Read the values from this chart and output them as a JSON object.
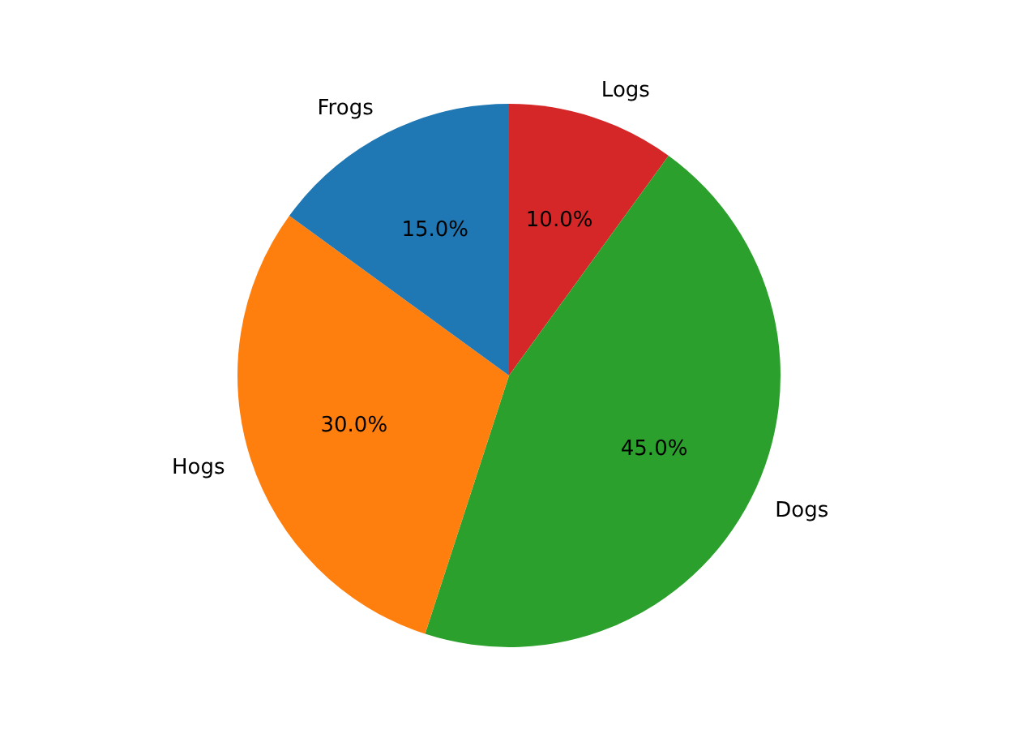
{
  "chart_data": {
    "type": "pie",
    "categories": [
      "Logs",
      "Dogs",
      "Hogs",
      "Frogs"
    ],
    "values": [
      10,
      45,
      30,
      15
    ],
    "colors": [
      "#d62728",
      "#2ca02c",
      "#ff7f0e",
      "#1f77b4"
    ],
    "value_labels": [
      "10.0%",
      "45.0%",
      "30.0%",
      "15.0%"
    ],
    "legend": false
  }
}
